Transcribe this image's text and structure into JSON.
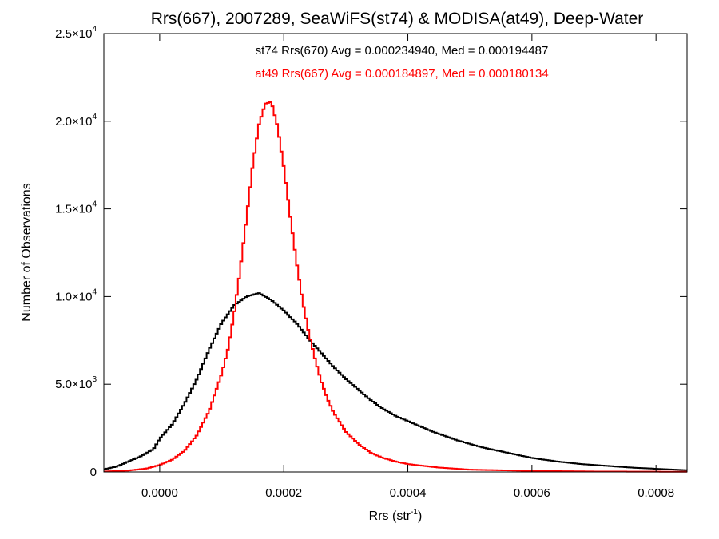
{
  "chart_data": {
    "type": "line",
    "title": "Rrs(667), 2007289, SeaWiFS(st74) & MODISA(at49), Deep-Water",
    "xlabel": "Rrs (str",
    "xlabel_sup": "-1",
    "xlabel_end": ")",
    "ylabel": "Number of Observations",
    "xlim": [
      -9e-05,
      0.00085
    ],
    "ylim": [
      0,
      25000
    ],
    "grid": false,
    "x_ticks": [
      0.0,
      0.0002,
      0.0004,
      0.0006,
      0.0008
    ],
    "x_tick_labels": [
      "0.0000",
      "0.0002",
      "0.0004",
      "0.0006",
      "0.0008"
    ],
    "y_ticks": [
      {
        "value": 0,
        "mant": "0",
        "exp": ""
      },
      {
        "value": 5000,
        "mant": "5.0×10",
        "exp": "3"
      },
      {
        "value": 10000,
        "mant": "1.0×10",
        "exp": "4"
      },
      {
        "value": 15000,
        "mant": "1.5×10",
        "exp": "4"
      },
      {
        "value": 20000,
        "mant": "2.0×10",
        "exp": "4"
      },
      {
        "value": 25000,
        "mant": "2.5×10",
        "exp": "4"
      }
    ],
    "annotations": [
      {
        "text": "st74 Rrs(670) Avg = 0.000234940, Med = 0.000194487",
        "color": "#000000"
      },
      {
        "text": "at49 Rrs(667) Avg = 0.000184897, Med = 0.000180134",
        "color": "#ff0000"
      }
    ],
    "series": [
      {
        "color": "#000000",
        "x": [
          -9e-05,
          -7e-05,
          -5e-05,
          -3e-05,
          -1e-05,
          0.0,
          2e-05,
          4e-05,
          6e-05,
          8e-05,
          0.0001,
          0.00012,
          0.00014,
          0.00016,
          0.00018,
          0.0002,
          0.00022,
          0.00024,
          0.00026,
          0.00028,
          0.0003,
          0.00032,
          0.00034,
          0.00036,
          0.00038,
          0.0004,
          0.00044,
          0.00048,
          0.00052,
          0.00056,
          0.0006,
          0.00064,
          0.00068,
          0.00072,
          0.00076,
          0.0008,
          0.00085
        ],
        "y": [
          150,
          300,
          600,
          900,
          1300,
          1900,
          2700,
          3900,
          5300,
          7000,
          8500,
          9500,
          10000,
          10200,
          9800,
          9200,
          8500,
          7600,
          6800,
          6000,
          5300,
          4700,
          4100,
          3600,
          3200,
          2900,
          2300,
          1800,
          1400,
          1100,
          800,
          600,
          450,
          350,
          250,
          180,
          100
        ]
      },
      {
        "color": "#ff0000",
        "x": [
          -9e-05,
          -5e-05,
          -2e-05,
          0.0,
          2e-05,
          4e-05,
          6e-05,
          8e-05,
          0.0001,
          0.00011,
          0.00012,
          0.00013,
          0.00014,
          0.00015,
          0.00016,
          0.00017,
          0.00018,
          0.00019,
          0.0002,
          0.00021,
          0.00022,
          0.00023,
          0.00024,
          0.00025,
          0.00026,
          0.00027,
          0.00028,
          0.0003,
          0.00032,
          0.00034,
          0.00036,
          0.00038,
          0.0004,
          0.00045,
          0.0005,
          0.0006,
          0.0007,
          0.00085
        ],
        "y": [
          20,
          80,
          200,
          400,
          700,
          1200,
          2100,
          3500,
          5600,
          7000,
          9000,
          11600,
          14500,
          17500,
          19800,
          21000,
          21100,
          19700,
          17400,
          14700,
          12100,
          9800,
          8000,
          6500,
          5200,
          4200,
          3400,
          2300,
          1600,
          1100,
          800,
          600,
          450,
          250,
          130,
          60,
          25,
          10
        ]
      }
    ]
  }
}
